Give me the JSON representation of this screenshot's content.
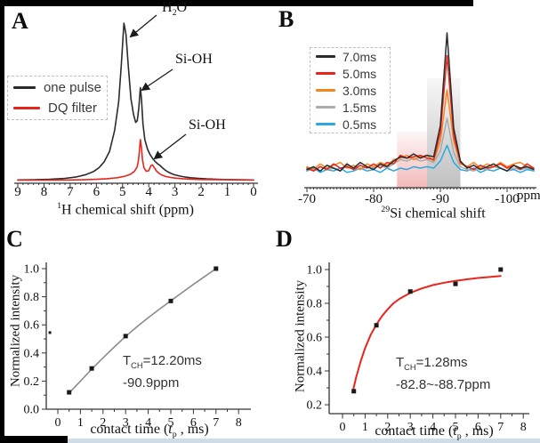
{
  "figure": {
    "panel_labels": {
      "a": "A",
      "b": "B",
      "c": "C",
      "d": "D"
    },
    "colors": {
      "background": "#ffffff",
      "frame_bar": "#000000",
      "bottom_strip": "#cfdde8"
    }
  },
  "chart_data": [
    {
      "id": "A",
      "type": "line",
      "xlabel_sup": "1",
      "xlabel_rest": "H chemical shift (ppm)",
      "x_ticks": [
        9,
        8,
        7,
        6,
        5,
        4,
        3,
        2,
        1,
        0
      ],
      "xlim": [
        9,
        0
      ],
      "x_axis_reversed": true,
      "peak_labels": [
        {
          "pre": "H",
          "sub": "2",
          "post": "O"
        },
        {
          "pre": "Si-OH",
          "sub": "",
          "post": ""
        },
        {
          "pre": "Si-OH",
          "sub": "",
          "post": ""
        }
      ],
      "series": [
        {
          "name": "one pulse",
          "color": "#2b2b2b",
          "points": [
            [
              9,
              0.004
            ],
            [
              8.4,
              0.005
            ],
            [
              7.8,
              0.008
            ],
            [
              7.2,
              0.014
            ],
            [
              6.8,
              0.022
            ],
            [
              6.4,
              0.038
            ],
            [
              6.1,
              0.058
            ],
            [
              5.9,
              0.082
            ],
            [
              5.7,
              0.12
            ],
            [
              5.5,
              0.185
            ],
            [
              5.3,
              0.32
            ],
            [
              5.15,
              0.5
            ],
            [
              5.05,
              0.73
            ],
            [
              4.95,
              1.0
            ],
            [
              4.87,
              0.93
            ],
            [
              4.78,
              0.72
            ],
            [
              4.68,
              0.52
            ],
            [
              4.58,
              0.42
            ],
            [
              4.5,
              0.37
            ],
            [
              4.44,
              0.38
            ],
            [
              4.38,
              0.46
            ],
            [
              4.32,
              0.59
            ],
            [
              4.28,
              0.52
            ],
            [
              4.22,
              0.36
            ],
            [
              4.15,
              0.26
            ],
            [
              4.05,
              0.2
            ],
            [
              3.95,
              0.165
            ],
            [
              3.85,
              0.14
            ],
            [
              3.75,
              0.12
            ],
            [
              3.65,
              0.105
            ],
            [
              3.58,
              0.098
            ],
            [
              3.5,
              0.085
            ],
            [
              3.4,
              0.07
            ],
            [
              3.3,
              0.058
            ],
            [
              3.15,
              0.045
            ],
            [
              3.0,
              0.036
            ],
            [
              2.8,
              0.028
            ],
            [
              2.6,
              0.022
            ],
            [
              2.4,
              0.018
            ],
            [
              2.1,
              0.014
            ],
            [
              1.8,
              0.011
            ],
            [
              1.4,
              0.008
            ],
            [
              1.0,
              0.006
            ],
            [
              0.5,
              0.005
            ],
            [
              0,
              0.004
            ]
          ]
        },
        {
          "name": "DQ filter",
          "color": "#e8251d",
          "points": [
            [
              9,
              0.003
            ],
            [
              8,
              0.003
            ],
            [
              7,
              0.004
            ],
            [
              6.5,
              0.005
            ],
            [
              6,
              0.008
            ],
            [
              5.6,
              0.012
            ],
            [
              5.2,
              0.018
            ],
            [
              4.9,
              0.028
            ],
            [
              4.7,
              0.04
            ],
            [
              4.55,
              0.058
            ],
            [
              4.45,
              0.085
            ],
            [
              4.4,
              0.12
            ],
            [
              4.36,
              0.18
            ],
            [
              4.32,
              0.26
            ],
            [
              4.28,
              0.21
            ],
            [
              4.24,
              0.13
            ],
            [
              4.18,
              0.08
            ],
            [
              4.1,
              0.06
            ],
            [
              4.0,
              0.062
            ],
            [
              3.92,
              0.095
            ],
            [
              3.86,
              0.1
            ],
            [
              3.78,
              0.08
            ],
            [
              3.7,
              0.06
            ],
            [
              3.6,
              0.045
            ],
            [
              3.5,
              0.035
            ],
            [
              3.35,
              0.026
            ],
            [
              3.2,
              0.021
            ],
            [
              3.0,
              0.016
            ],
            [
              2.7,
              0.012
            ],
            [
              2.4,
              0.009
            ],
            [
              2.0,
              0.007
            ],
            [
              1.5,
              0.006
            ],
            [
              1.0,
              0.005
            ],
            [
              0.5,
              0.004
            ],
            [
              0,
              0.004
            ]
          ]
        }
      ]
    },
    {
      "id": "B",
      "type": "line",
      "xlabel_sup": "29",
      "xlabel_rest": "Si chemical shift",
      "x_unit": "ppm",
      "x_ticks": [
        -70,
        -80,
        -90,
        -100
      ],
      "xlim": [
        -70,
        -104
      ],
      "shaded_regions": [
        {
          "from": -83.5,
          "to": -88,
          "color": "#ec8f8f"
        },
        {
          "from": -88,
          "to": -93,
          "color": "#9a9a9a"
        }
      ],
      "series": [
        {
          "name": "7.0ms",
          "color": "#2b2b2b",
          "x_start": -70,
          "x_step": -1,
          "values": [
            0.04,
            0.06,
            0.03,
            0.07,
            0.05,
            0.03,
            0.08,
            0.05,
            0.09,
            0.06,
            0.04,
            0.08,
            0.06,
            0.1,
            0.13,
            0.12,
            0.15,
            0.12,
            0.14,
            0.13,
            0.35,
            1.0,
            0.33,
            0.1,
            0.05,
            0.07,
            0.04,
            0.06,
            0.08,
            0.05,
            0.03,
            0.07,
            0.05,
            0.06,
            0.04
          ]
        },
        {
          "name": "5.0ms",
          "color": "#e8251d",
          "x_start": -70,
          "x_step": -1,
          "values": [
            0.05,
            0.03,
            0.06,
            0.04,
            0.08,
            0.05,
            0.06,
            0.04,
            0.07,
            0.05,
            0.08,
            0.05,
            0.09,
            0.08,
            0.14,
            0.12,
            0.13,
            0.14,
            0.12,
            0.11,
            0.3,
            0.84,
            0.28,
            0.09,
            0.06,
            0.04,
            0.07,
            0.05,
            0.06,
            0.08,
            0.05,
            0.07,
            0.04,
            0.08,
            0.05
          ]
        },
        {
          "name": "3.0ms",
          "color": "#f6851f",
          "x_start": -70,
          "x_step": -1,
          "values": [
            0.06,
            0.04,
            0.08,
            0.05,
            0.07,
            0.09,
            0.05,
            0.07,
            0.04,
            0.08,
            0.06,
            0.09,
            0.07,
            0.11,
            0.12,
            0.14,
            0.11,
            0.13,
            0.14,
            0.1,
            0.24,
            0.6,
            0.24,
            0.08,
            0.06,
            0.09,
            0.05,
            0.08,
            0.06,
            0.09,
            0.06,
            0.08,
            0.09,
            0.06,
            0.05
          ]
        },
        {
          "name": "1.5ms",
          "color": "#ababab",
          "x_start": -70,
          "x_step": -1,
          "values": [
            0.05,
            0.03,
            0.06,
            0.04,
            0.05,
            0.03,
            0.07,
            0.05,
            0.04,
            0.06,
            0.05,
            0.07,
            0.05,
            0.08,
            0.11,
            0.1,
            0.12,
            0.1,
            0.11,
            0.09,
            0.17,
            0.4,
            0.16,
            0.06,
            0.04,
            0.03,
            0.05,
            0.04,
            0.06,
            0.05,
            0.03,
            0.05,
            0.04,
            0.05,
            0.04
          ]
        },
        {
          "name": "0.5ms",
          "color": "#2aa9e0",
          "x_start": -70,
          "x_step": -1,
          "values": [
            0.03,
            0.05,
            0.02,
            0.04,
            0.03,
            0.05,
            0.02,
            0.03,
            0.05,
            0.03,
            0.04,
            0.02,
            0.05,
            0.03,
            0.05,
            0.04,
            0.06,
            0.05,
            0.06,
            0.05,
            0.1,
            0.21,
            0.09,
            0.04,
            0.03,
            0.05,
            0.02,
            0.04,
            0.03,
            0.05,
            0.03,
            0.04,
            0.02,
            0.04,
            0.03
          ]
        }
      ]
    },
    {
      "id": "C",
      "type": "scatter",
      "xlabel_pre": "contact time (",
      "xlabel_var": "t",
      "xlabel_sub": "p",
      "xlabel_post": " , ms)",
      "ylabel": "Normalized intensity",
      "x_ticks": [
        0,
        1,
        2,
        3,
        4,
        5,
        6,
        7,
        8
      ],
      "y_ticks": [
        "0.0",
        "0.2",
        "0.4",
        "0.6",
        "0.8",
        "1.0"
      ],
      "xlim": [
        0,
        8
      ],
      "ylim": [
        0,
        1.05
      ],
      "marker_color": "#1a1a1a",
      "points": [
        [
          0.5,
          0.12
        ],
        [
          1.5,
          0.29
        ],
        [
          3,
          0.52
        ],
        [
          5,
          0.77
        ],
        [
          7,
          1.0
        ]
      ],
      "stray_point": [
        -0.35,
        0.545
      ],
      "fit": {
        "color": "#8c8c8c",
        "points": [
          [
            0.5,
            0.115
          ],
          [
            1.0,
            0.2
          ],
          [
            1.5,
            0.285
          ],
          [
            2.0,
            0.365
          ],
          [
            2.5,
            0.443
          ],
          [
            3.0,
            0.518
          ],
          [
            3.5,
            0.586
          ],
          [
            4.0,
            0.651
          ],
          [
            4.5,
            0.712
          ],
          [
            5.0,
            0.771
          ],
          [
            5.5,
            0.83
          ],
          [
            6.0,
            0.888
          ],
          [
            6.5,
            0.944
          ],
          [
            7.0,
            1.0
          ]
        ]
      },
      "annotation": {
        "t_pre": "T",
        "t_sub": "CH",
        "t_rest": "=12.20ms",
        "line2": "-90.9ppm"
      }
    },
    {
      "id": "D",
      "type": "scatter",
      "xlabel_pre": "contact time (",
      "xlabel_var": "t",
      "xlabel_sub": "p",
      "xlabel_post": " , ms)",
      "ylabel": "Normalized intensity",
      "x_ticks": [
        0,
        1,
        2,
        3,
        4,
        5,
        6,
        7,
        8
      ],
      "y_ticks": [
        "0.2",
        "0.4",
        "0.6",
        "0.8",
        "1.0"
      ],
      "xlim": [
        0,
        8
      ],
      "ylim": [
        0.15,
        1.05
      ],
      "marker_color": "#1a1a1a",
      "points": [
        [
          0.5,
          0.28
        ],
        [
          1.5,
          0.67
        ],
        [
          3,
          0.87
        ],
        [
          5,
          0.915
        ],
        [
          7,
          1.0
        ]
      ],
      "fit": {
        "color": "#e8251d",
        "points": [
          [
            0.45,
            0.275
          ],
          [
            0.6,
            0.36
          ],
          [
            0.8,
            0.455
          ],
          [
            1.0,
            0.535
          ],
          [
            1.25,
            0.615
          ],
          [
            1.5,
            0.675
          ],
          [
            1.75,
            0.725
          ],
          [
            2.0,
            0.765
          ],
          [
            2.25,
            0.8
          ],
          [
            2.5,
            0.825
          ],
          [
            3.0,
            0.862
          ],
          [
            3.5,
            0.888
          ],
          [
            4.0,
            0.908
          ],
          [
            4.5,
            0.922
          ],
          [
            5.0,
            0.933
          ],
          [
            5.5,
            0.942
          ],
          [
            6.0,
            0.95
          ],
          [
            6.5,
            0.956
          ],
          [
            7.0,
            0.962
          ]
        ]
      },
      "annotation": {
        "t_pre": "T",
        "t_sub": "CH",
        "t_rest": "=1.28ms",
        "line2": "-82.8~-88.7ppm"
      }
    }
  ]
}
